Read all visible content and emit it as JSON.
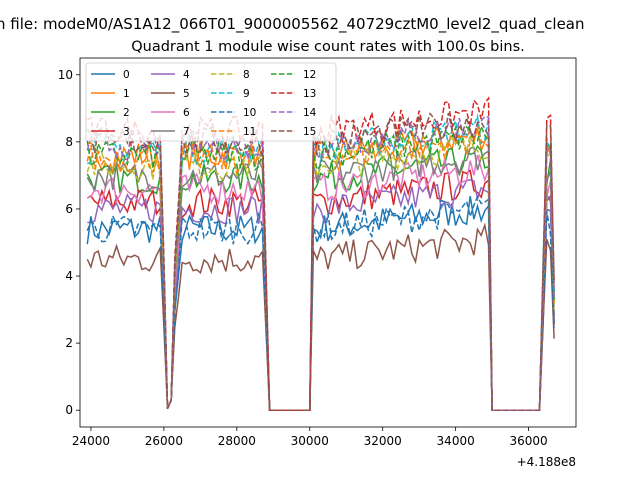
{
  "figure": {
    "suptitle": "n file: modeM0/AS1A12_066T01_9000005562_40729cztM0_level2_quad_clean"
  },
  "chart_data": {
    "type": "line",
    "title": "Quadrant 1 module wise count rates with 100.0s bins.",
    "xlabel": "",
    "ylabel": "",
    "x_offset_label": "+4.188e8",
    "xlim": [
      23700,
      37300
    ],
    "ylim": [
      -0.5,
      10.5
    ],
    "x_ticks": [
      24000,
      26000,
      28000,
      30000,
      32000,
      34000,
      36000
    ],
    "x_tick_labels": [
      "24000",
      "26000",
      "28000",
      "30000",
      "32000",
      "34000",
      "36000"
    ],
    "y_ticks": [
      0,
      2,
      4,
      6,
      8,
      10
    ],
    "y_tick_labels": [
      "0",
      "2",
      "4",
      "6",
      "8",
      "10"
    ],
    "grid": false,
    "legend": {
      "placement": "top-left",
      "columns": 4
    },
    "segments": [
      {
        "start": 23900,
        "end": 25900,
        "step": 100
      },
      {
        "start": 26000,
        "end": 26300,
        "step": 100
      },
      {
        "start": 26400,
        "end": 28700,
        "step": 100
      },
      {
        "start": 28900,
        "end": 30000,
        "step": 100
      },
      {
        "start": 30100,
        "end": 34900,
        "step": 100
      },
      {
        "start": 35000,
        "end": 36300,
        "step": 100
      },
      {
        "start": 36400,
        "end": 36700,
        "step": 100
      }
    ],
    "series": [
      {
        "name": "0",
        "color": "#1f77b4",
        "dash": "solid",
        "level": 5.4
      },
      {
        "name": "1",
        "color": "#ff7f0e",
        "dash": "solid",
        "level": 7.6
      },
      {
        "name": "2",
        "color": "#2ca02c",
        "dash": "solid",
        "level": 6.9
      },
      {
        "name": "3",
        "color": "#d62728",
        "dash": "solid",
        "level": 6.2
      },
      {
        "name": "4",
        "color": "#9467bd",
        "dash": "solid",
        "level": 6.0
      },
      {
        "name": "5",
        "color": "#8c564b",
        "dash": "solid",
        "level": 4.5
      },
      {
        "name": "6",
        "color": "#e377c2",
        "dash": "solid",
        "level": 6.6
      },
      {
        "name": "7",
        "color": "#7f7f7f",
        "dash": "solid",
        "level": 7.0
      },
      {
        "name": "8",
        "color": "#bcbd22",
        "dash": "dashed",
        "level": 7.3
      },
      {
        "name": "9",
        "color": "#17becf",
        "dash": "dashed",
        "level": 7.8
      },
      {
        "name": "10",
        "color": "#1f77b4",
        "dash": "dashed",
        "level": 5.4
      },
      {
        "name": "11",
        "color": "#ff7f0e",
        "dash": "dashed",
        "level": 7.5
      },
      {
        "name": "12",
        "color": "#2ca02c",
        "dash": "dashed",
        "level": 7.6
      },
      {
        "name": "13",
        "color": "#d62728",
        "dash": "dashed",
        "level": 8.3
      },
      {
        "name": "14",
        "color": "#9467bd",
        "dash": "dashed",
        "level": 7.9
      },
      {
        "name": "15",
        "color": "#8c564b",
        "dash": "dashed",
        "level": 8.0
      }
    ]
  }
}
